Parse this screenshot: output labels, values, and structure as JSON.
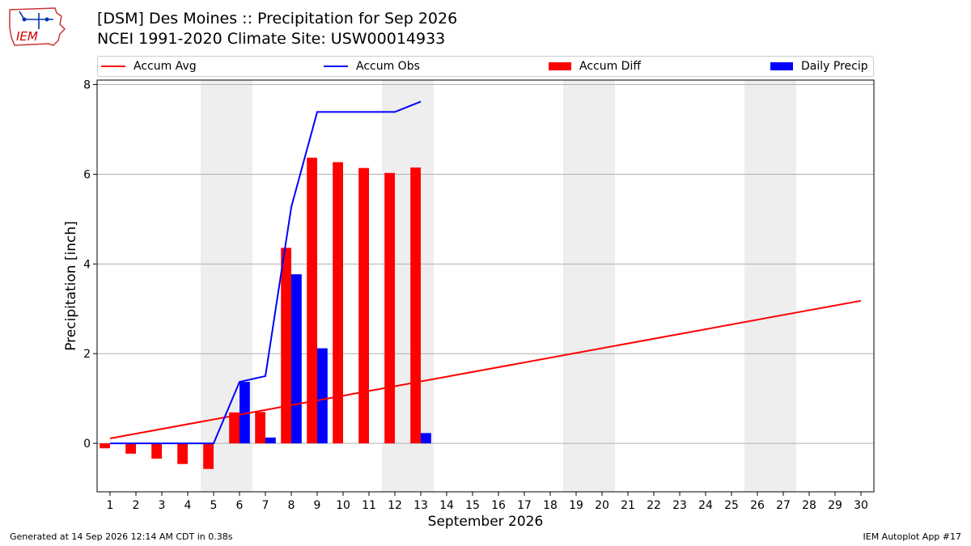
{
  "header": {
    "title_line1": "[DSM] Des Moines :: Precipitation for Sep 2026",
    "title_line2": "NCEI 1991-2020 Climate Site: USW00014933",
    "logo_text": "IEM"
  },
  "legend": {
    "accum_avg": "Accum Avg",
    "accum_obs": "Accum Obs",
    "accum_diff": "Accum Diff",
    "daily_precip": "Daily Precip"
  },
  "footer": {
    "generated": "Generated at 14 Sep 2026 12:14 AM CDT in 0.38s",
    "app": "IEM Autoplot App #17"
  },
  "colors": {
    "avg": "#ff0000",
    "obs": "#0000ff",
    "diff": "#ff0000",
    "daily": "#0000ff",
    "weekend_shade": "#eeeeee",
    "grid": "#b0b0b0"
  },
  "chart_data": {
    "type": "bar",
    "title": "[DSM] Des Moines :: Precipitation for Sep 2026",
    "xlabel": "September 2026",
    "ylabel": "Precipitation [inch]",
    "xlim": [
      0.5,
      30.5
    ],
    "ylim": [
      -1.08,
      8.1
    ],
    "yticks": [
      0,
      2,
      4,
      6,
      8
    ],
    "xticks": [
      1,
      2,
      3,
      4,
      5,
      6,
      7,
      8,
      9,
      10,
      11,
      12,
      13,
      14,
      15,
      16,
      17,
      18,
      19,
      20,
      21,
      22,
      23,
      24,
      25,
      26,
      27,
      28,
      29,
      30
    ],
    "grid": "horizontal",
    "legend_position": "top",
    "weekend_shading": [
      [
        5,
        6
      ],
      [
        12,
        13
      ],
      [
        19,
        20
      ],
      [
        26,
        27
      ]
    ],
    "series": [
      {
        "name": "Accum Avg",
        "type": "line",
        "x": [
          1,
          30
        ],
        "values": [
          0.11,
          3.18
        ]
      },
      {
        "name": "Accum Obs",
        "type": "line",
        "x": [
          1,
          2,
          3,
          4,
          5,
          6,
          7,
          8,
          9,
          10,
          11,
          12,
          13
        ],
        "values": [
          0.0,
          0.0,
          0.0,
          0.0,
          0.0,
          1.37,
          1.5,
          5.27,
          7.39,
          7.39,
          7.39,
          7.39,
          7.62
        ]
      },
      {
        "name": "Accum Diff",
        "type": "bar",
        "x": [
          1,
          2,
          3,
          4,
          5,
          6,
          7,
          8,
          9,
          10,
          11,
          12,
          13
        ],
        "values": [
          -0.11,
          -0.23,
          -0.34,
          -0.46,
          -0.57,
          0.69,
          0.7,
          4.36,
          6.37,
          6.27,
          6.14,
          6.03,
          6.15
        ]
      },
      {
        "name": "Daily Precip",
        "type": "bar",
        "x": [
          1,
          2,
          3,
          4,
          5,
          6,
          7,
          8,
          9,
          10,
          11,
          12,
          13
        ],
        "values": [
          0,
          0,
          0,
          0,
          0,
          1.37,
          0.13,
          3.77,
          2.12,
          0,
          0,
          0,
          0.23
        ]
      }
    ]
  }
}
